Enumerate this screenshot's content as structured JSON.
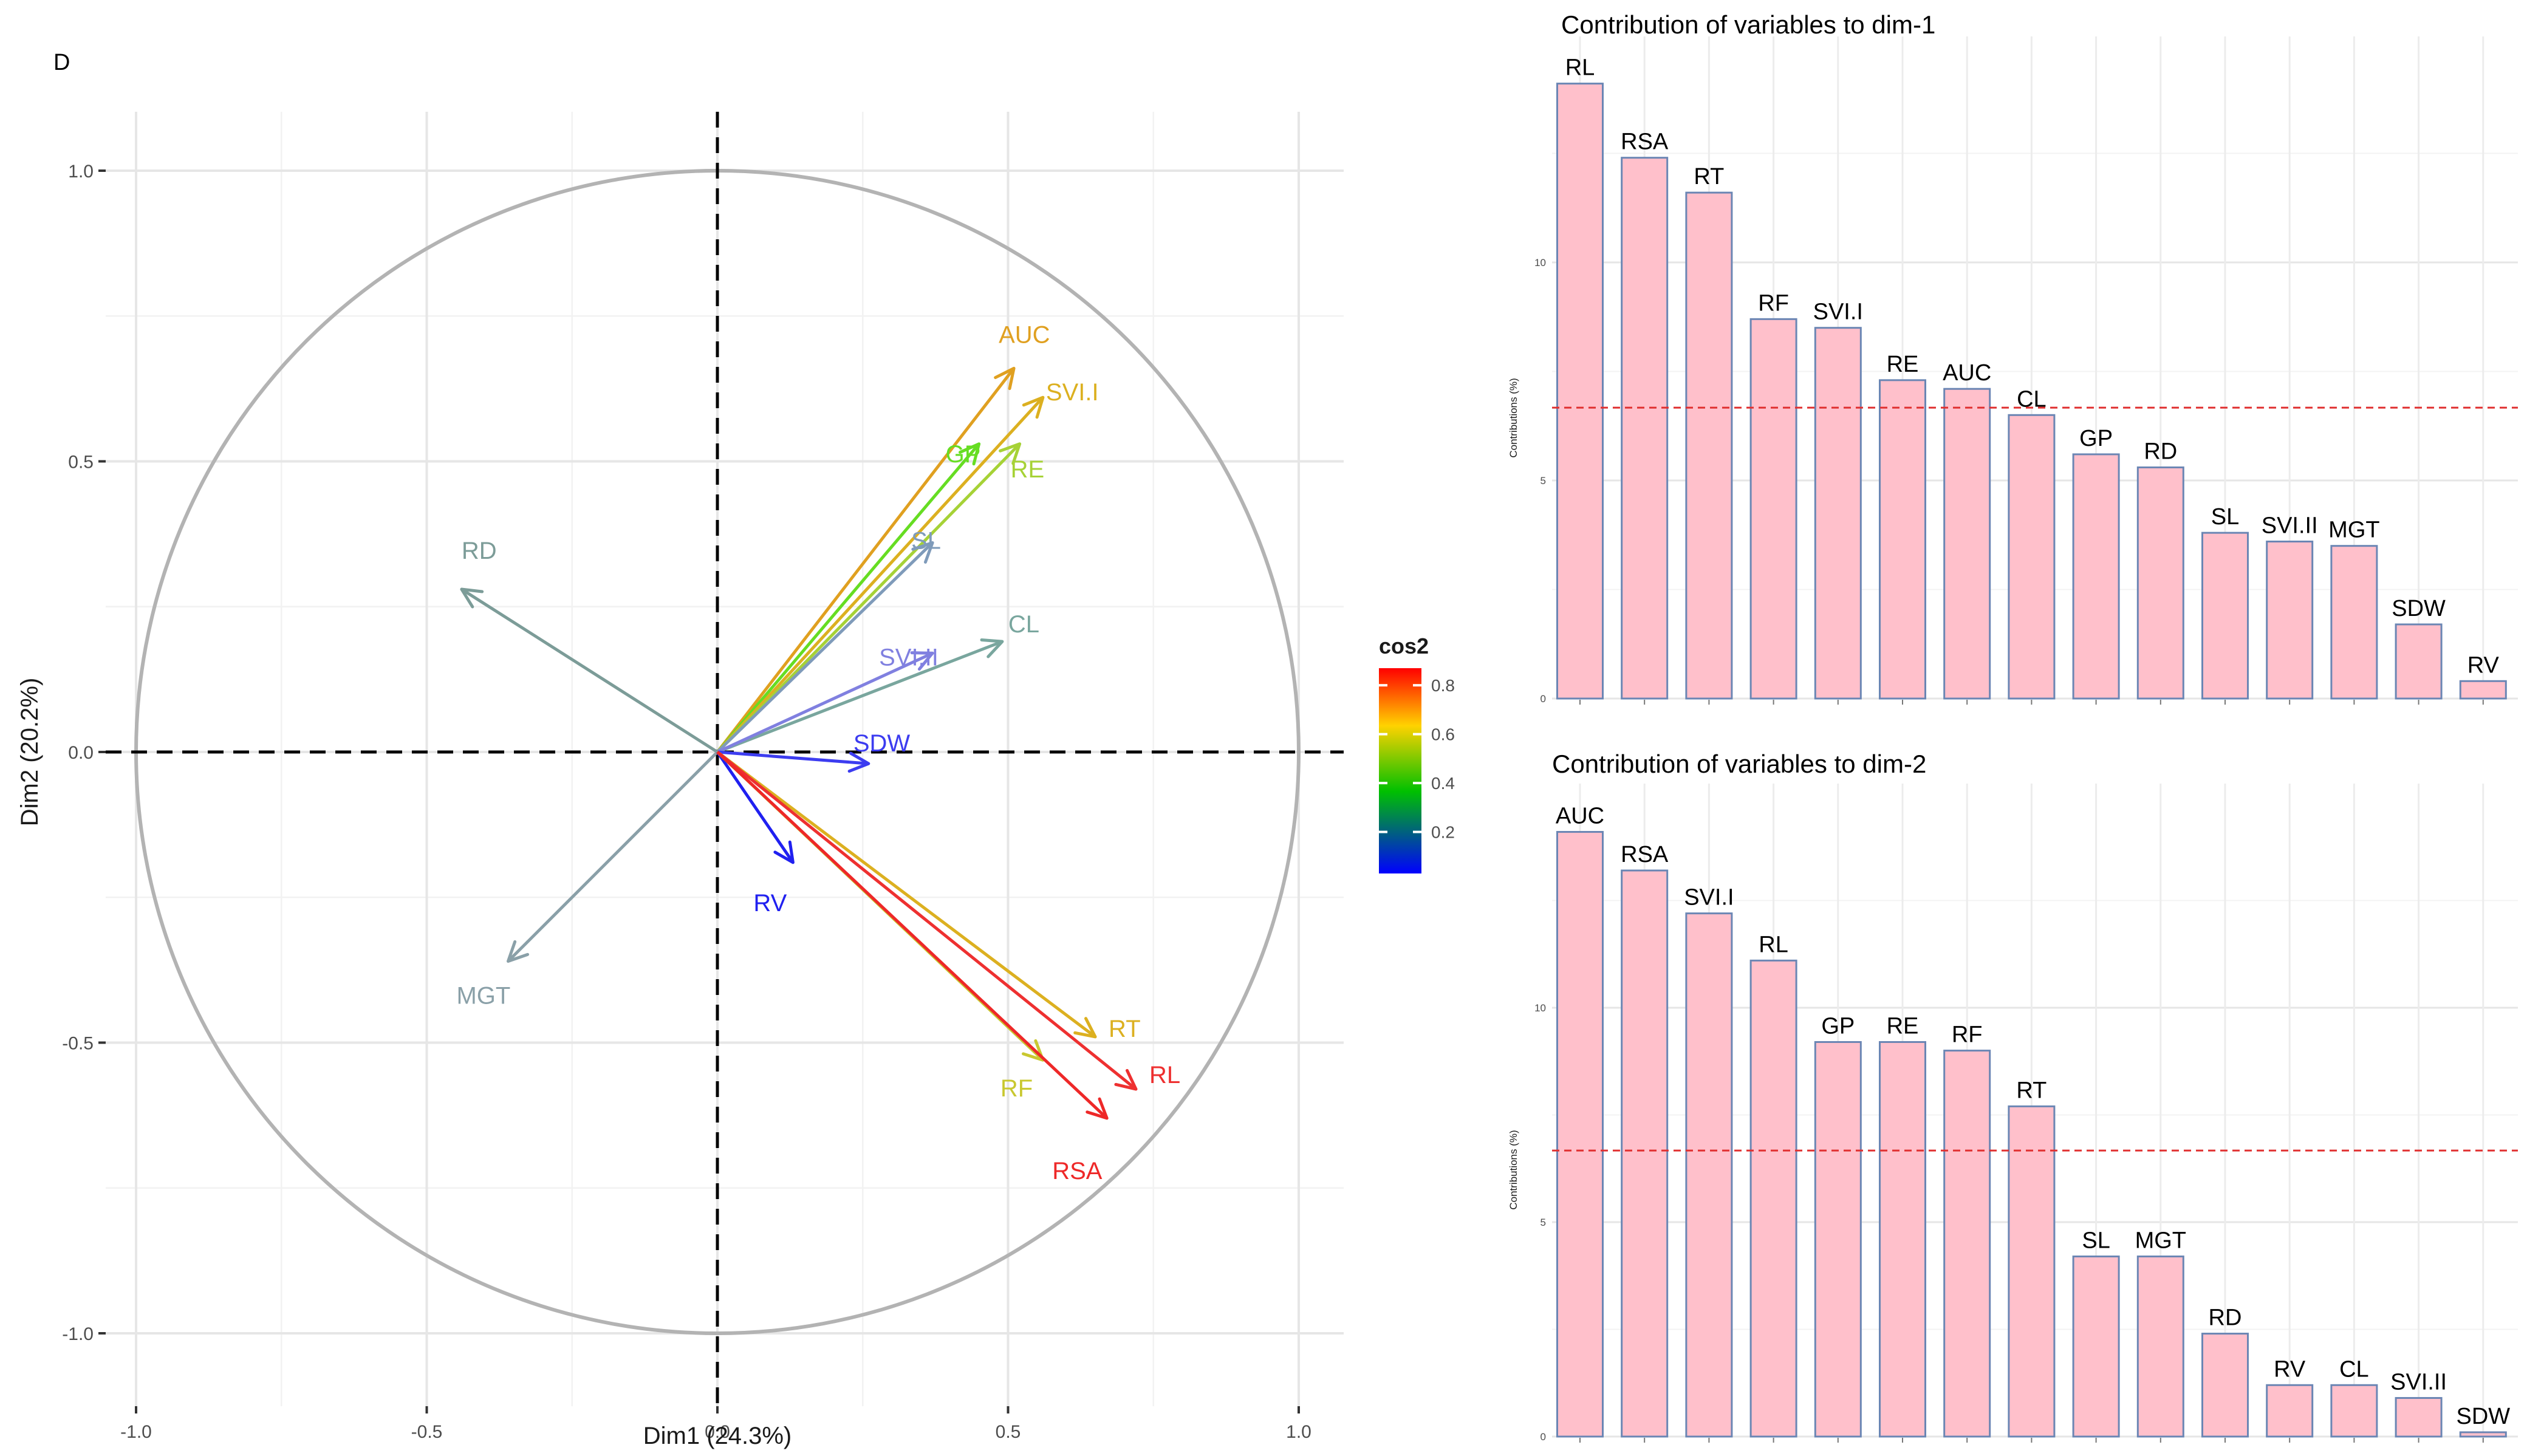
{
  "panel_label": "D",
  "chart_data": [
    {
      "type": "pca_variable_biplot",
      "xlabel": "Dim1 (24.3%)",
      "ylabel": "Dim2 (20.2%)",
      "xlim": [
        -1.0,
        1.0
      ],
      "ylim": [
        -1.0,
        1.0
      ],
      "ticks": [
        -1.0,
        -0.5,
        0.0,
        0.5,
        1.0
      ],
      "tick_labels": [
        "-1.0",
        "-0.5",
        "0.0",
        "0.5",
        "1.0"
      ],
      "legend_title": "cos2",
      "legend_ticks": [
        0.2,
        0.4,
        0.6,
        0.8
      ],
      "legend_tick_labels": [
        "0.2",
        "0.4",
        "0.6",
        "0.8"
      ],
      "gradient_colors": [
        "#0000ff",
        "#00c000",
        "#ffd200",
        "#ff0000"
      ],
      "variables": [
        {
          "name": "AUC",
          "x": 0.51,
          "y": 0.66,
          "color": "#e0a020"
        },
        {
          "name": "GP",
          "x": 0.45,
          "y": 0.53,
          "color": "#66dd22"
        },
        {
          "name": "SVI.I",
          "x": 0.56,
          "y": 0.61,
          "color": "#dcb020"
        },
        {
          "name": "RE",
          "x": 0.52,
          "y": 0.53,
          "color": "#a6d236"
        },
        {
          "name": "SL",
          "x": 0.37,
          "y": 0.36,
          "color": "#7f9bba"
        },
        {
          "name": "CL",
          "x": 0.49,
          "y": 0.19,
          "color": "#79a69e"
        },
        {
          "name": "SVI.II",
          "x": 0.37,
          "y": 0.17,
          "color": "#8080e0"
        },
        {
          "name": "SDW",
          "x": 0.26,
          "y": -0.02,
          "color": "#3c3cf0"
        },
        {
          "name": "RD",
          "x": -0.44,
          "y": 0.28,
          "color": "#7c9c98"
        },
        {
          "name": "MGT",
          "x": -0.36,
          "y": -0.36,
          "color": "#8aa0a8"
        },
        {
          "name": "RV",
          "x": 0.13,
          "y": -0.19,
          "color": "#2020f0"
        },
        {
          "name": "RT",
          "x": 0.65,
          "y": -0.49,
          "color": "#dcb020"
        },
        {
          "name": "RF",
          "x": 0.56,
          "y": -0.53,
          "color": "#c9c830"
        },
        {
          "name": "RL",
          "x": 0.72,
          "y": -0.58,
          "color": "#ee3030"
        },
        {
          "name": "RSA",
          "x": 0.67,
          "y": -0.63,
          "color": "#ee2828"
        }
      ]
    },
    {
      "type": "bar",
      "title": "Contribution of variables to dim-1",
      "ylabel": "Contributions (%)",
      "ylim": [
        0,
        14.5
      ],
      "yticks": [
        0,
        5,
        10
      ],
      "ytick_labels": [
        "0",
        "5",
        "10"
      ],
      "reference_line": 6.67,
      "bar_color": "#ffc0cb",
      "bar_edge": "#6b86b4",
      "categories": [
        "RL",
        "RSA",
        "RT",
        "RF",
        "SVI.I",
        "RE",
        "AUC",
        "CL",
        "GP",
        "RD",
        "SL",
        "SVI.II",
        "MGT",
        "SDW",
        "RV"
      ],
      "values": [
        14.1,
        12.4,
        11.6,
        8.7,
        8.5,
        7.3,
        7.1,
        6.5,
        5.6,
        5.3,
        3.8,
        3.6,
        3.5,
        1.7,
        0.4
      ]
    },
    {
      "type": "bar",
      "title": "Contribution of variables to dim-2",
      "ylabel": "Contributions (%)",
      "ylim": [
        0,
        14.5
      ],
      "yticks": [
        0,
        5,
        10
      ],
      "ytick_labels": [
        "0",
        "5",
        "10"
      ],
      "reference_line": 6.67,
      "bar_color": "#ffc0cb",
      "bar_edge": "#6b86b4",
      "categories": [
        "AUC",
        "RSA",
        "SVI.I",
        "RL",
        "GP",
        "RE",
        "RF",
        "RT",
        "SL",
        "MGT",
        "RD",
        "RV",
        "CL",
        "SVI.II",
        "SDW"
      ],
      "values": [
        14.1,
        13.2,
        12.2,
        11.1,
        9.2,
        9.2,
        9.0,
        7.7,
        4.2,
        4.2,
        2.4,
        1.2,
        1.2,
        0.9,
        0.1
      ]
    }
  ]
}
